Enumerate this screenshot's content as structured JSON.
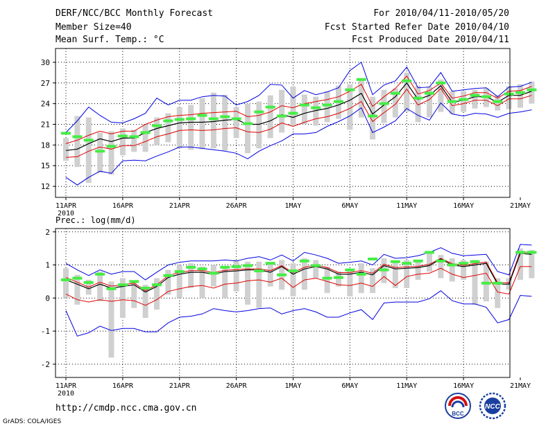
{
  "header": {
    "title": "DERF/NCC/BCC Monthly Forecast",
    "member_size": "Member Size=40",
    "variable": "Mean Surf. Temp.: °C",
    "period": "For 2010/04/11-2010/05/20",
    "started": "Fcst Started Refer Date 2010/04/10",
    "produced": "Fcst Produced Date 2010/04/11"
  },
  "footer": {
    "url": "http://cmdp.ncc.cma.gov.cn",
    "credit": "GrADS: COLA/IGES"
  },
  "logos": {
    "bcc_label": "BCC",
    "ncc_label": "NCC"
  },
  "colors": {
    "bar": "#d0d0d0",
    "green": "#44ee44",
    "blue": "#0000e0",
    "red": "#e00000",
    "black": "#000000",
    "grid": "#000000"
  },
  "chart_data": [
    {
      "type": "line",
      "title": "Mean Surf. Temp.: °C",
      "ylim": [
        10.4,
        32
      ],
      "yticks": [
        12,
        15,
        18,
        21,
        24,
        27,
        30
      ],
      "xticks": [
        {
          "day": 0,
          "label": "11APR"
        },
        {
          "day": 5,
          "label": "16APR"
        },
        {
          "day": 10,
          "label": "21APR"
        },
        {
          "day": 15,
          "label": "26APR"
        },
        {
          "day": 20,
          "label": "1MAY"
        },
        {
          "day": 25,
          "label": "6MAY"
        },
        {
          "day": 30,
          "label": "11MAY"
        },
        {
          "day": 35,
          "label": "16MAY"
        },
        {
          "day": 40,
          "label": "21MAY"
        }
      ],
      "xsublabel": "2010",
      "mean": [
        17.2,
        17.4,
        18.2,
        18.9,
        18.5,
        19.0,
        19.0,
        19.8,
        20.4,
        20.8,
        21.2,
        21.3,
        21.3,
        21.4,
        21.6,
        21.7,
        21.0,
        21.0,
        21.5,
        22.4,
        22.0,
        22.6,
        23.0,
        23.3,
        23.8,
        24.5,
        25.5,
        22.5,
        23.8,
        25.0,
        27.0,
        24.6,
        25.2,
        26.6,
        24.2,
        24.5,
        25.0,
        25.0,
        24.2,
        25.2,
        25.2,
        25.8
      ],
      "upper": [
        18.2,
        18.7,
        19.4,
        20.0,
        19.6,
        20.0,
        20.0,
        21.0,
        21.6,
        22.1,
        22.3,
        22.4,
        22.6,
        22.7,
        22.8,
        22.9,
        22.1,
        22.3,
        22.8,
        23.7,
        23.4,
        24.0,
        24.3,
        24.6,
        25.0,
        25.8,
        26.8,
        23.6,
        25.0,
        26.2,
        28.0,
        25.4,
        25.9,
        27.0,
        24.8,
        25.1,
        25.6,
        25.6,
        24.8,
        25.8,
        25.9,
        26.5
      ],
      "lower": [
        16.2,
        16.3,
        17.1,
        17.7,
        17.4,
        17.9,
        17.9,
        18.5,
        19.2,
        19.6,
        20.1,
        20.2,
        20.1,
        20.2,
        20.4,
        20.5,
        19.9,
        19.8,
        20.3,
        21.2,
        20.7,
        21.3,
        21.8,
        22.1,
        22.6,
        23.3,
        24.3,
        21.4,
        22.7,
        23.9,
        26.1,
        23.8,
        24.6,
        26.2,
        23.7,
        24.0,
        24.5,
        24.5,
        23.7,
        24.7,
        24.7,
        25.2
      ],
      "max": [
        19.8,
        21.5,
        23.5,
        22.3,
        21.3,
        21.2,
        21.8,
        22.6,
        24.8,
        23.8,
        24.5,
        24.5,
        25.0,
        25.2,
        25.1,
        23.8,
        24.3,
        25.2,
        26.8,
        26.7,
        24.8,
        25.9,
        25.3,
        25.7,
        26.3,
        28.8,
        30.0,
        25.3,
        26.7,
        27.3,
        29.3,
        26.3,
        26.4,
        28.5,
        25.8,
        26.0,
        26.2,
        26.3,
        25.0,
        26.4,
        26.5,
        27.1
      ],
      "min": [
        13.3,
        12.2,
        13.3,
        14.2,
        13.9,
        15.7,
        15.8,
        15.7,
        16.4,
        17.0,
        17.7,
        17.7,
        17.5,
        17.3,
        17.1,
        16.8,
        16.0,
        17.1,
        17.9,
        18.6,
        19.6,
        19.6,
        19.8,
        20.7,
        21.4,
        22.2,
        23.4,
        19.8,
        20.6,
        21.5,
        23.3,
        22.3,
        21.6,
        24.1,
        22.5,
        22.2,
        22.6,
        22.5,
        22.0,
        22.6,
        22.8,
        23.1
      ],
      "boxes": [
        [
          15.7,
          19.0
        ],
        [
          14.8,
          22.2
        ],
        [
          12.5,
          22.0
        ],
        [
          14.0,
          19.8
        ],
        [
          13.7,
          20.0
        ],
        [
          16.5,
          20.4
        ],
        [
          17.0,
          20.2
        ],
        [
          17.0,
          21.0
        ],
        [
          18.0,
          22.0
        ],
        [
          18.4,
          22.6
        ],
        [
          17.5,
          23.5
        ],
        [
          17.3,
          23.8
        ],
        [
          17.4,
          24.8
        ],
        [
          17.5,
          25.6
        ],
        [
          17.2,
          25.3
        ],
        [
          19.0,
          23.5
        ],
        [
          16.8,
          24.0
        ],
        [
          17.5,
          24.3
        ],
        [
          19.0,
          25.2
        ],
        [
          19.8,
          26.0
        ],
        [
          20.8,
          26.5
        ],
        [
          21.0,
          25.3
        ],
        [
          20.8,
          25.0
        ],
        [
          21.3,
          25.8
        ],
        [
          21.8,
          26.6
        ],
        [
          20.2,
          26.8
        ],
        [
          22.0,
          27.5
        ],
        [
          18.8,
          25.0
        ],
        [
          21.2,
          26.0
        ],
        [
          22.0,
          26.2
        ],
        [
          22.8,
          28.5
        ],
        [
          21.3,
          26.6
        ],
        [
          22.0,
          26.5
        ],
        [
          22.8,
          27.5
        ],
        [
          22.5,
          25.8
        ],
        [
          22.8,
          25.8
        ],
        [
          23.3,
          26.0
        ],
        [
          23.5,
          26.2
        ],
        [
          23.0,
          25.2
        ],
        [
          23.2,
          26.5
        ],
        [
          23.4,
          26.8
        ],
        [
          24.0,
          27.2
        ]
      ],
      "obs": [
        19.7,
        null,
        18.7,
        17.1,
        17.8,
        19.3,
        19.2,
        19.8,
        null,
        21.5,
        21.7,
        21.8,
        22.3,
        21.8,
        22.1,
        21.8,
        21.1,
        22.8,
        23.5,
        22.2,
        22.6,
        23.8,
        23.4,
        23.8,
        24.3,
        26.0,
        27.5,
        22.2,
        24.0,
        25.5,
        27.3,
        24.8,
        25.5,
        27.0,
        24.3,
        24.6,
        25.2,
        25.0,
        24.3,
        25.4,
        25.6,
        26.0
      ],
      "greens_only": [
        1,
        8
      ],
      "green_alt": [
        19.2,
        20.8
      ]
    },
    {
      "type": "line",
      "title": "Prec.: log(mm/d)",
      "ylim": [
        -2.4,
        2.1
      ],
      "yticks": [
        -2,
        -1,
        0,
        1,
        2
      ],
      "xticks": [
        {
          "day": 0,
          "label": "11APR"
        },
        {
          "day": 5,
          "label": "16APR"
        },
        {
          "day": 10,
          "label": "21APR"
        },
        {
          "day": 15,
          "label": "26APR"
        },
        {
          "day": 20,
          "label": "1MAY"
        },
        {
          "day": 25,
          "label": "6MAY"
        },
        {
          "day": 30,
          "label": "11MAY"
        },
        {
          "day": 35,
          "label": "16MAY"
        },
        {
          "day": 40,
          "label": "21MAY"
        }
      ],
      "xsublabel": "2010",
      "mean": [
        0.55,
        0.42,
        0.28,
        0.42,
        0.3,
        0.35,
        0.4,
        0.18,
        0.35,
        0.62,
        0.72,
        0.78,
        0.78,
        0.72,
        0.8,
        0.82,
        0.85,
        0.85,
        0.78,
        0.95,
        0.72,
        0.88,
        0.95,
        0.88,
        0.72,
        0.72,
        0.78,
        0.7,
        0.98,
        0.88,
        0.9,
        0.92,
        0.98,
        1.18,
        1.0,
        0.95,
        1.0,
        1.05,
        0.42,
        0.42,
        1.35,
        1.32
      ],
      "upper": [
        0.62,
        0.48,
        0.33,
        0.48,
        0.36,
        0.4,
        0.45,
        0.22,
        0.4,
        0.68,
        0.77,
        0.83,
        0.83,
        0.77,
        0.84,
        0.86,
        0.88,
        0.88,
        0.83,
        0.98,
        0.77,
        0.93,
        1.0,
        0.92,
        0.77,
        0.77,
        0.83,
        0.75,
        1.02,
        0.92,
        0.94,
        0.96,
        1.02,
        1.2,
        1.04,
        0.99,
        1.04,
        1.09,
        0.46,
        0.46,
        1.4,
        1.37
      ],
      "lower": [
        0.47,
        0.35,
        0.22,
        0.35,
        0.24,
        0.28,
        0.34,
        0.12,
        0.28,
        0.55,
        0.66,
        0.72,
        0.72,
        0.66,
        0.74,
        0.76,
        0.79,
        0.79,
        0.72,
        0.89,
        0.66,
        0.82,
        0.88,
        0.82,
        0.66,
        0.66,
        0.72,
        0.64,
        0.92,
        0.82,
        0.84,
        0.86,
        0.92,
        1.12,
        0.94,
        0.89,
        0.94,
        0.99,
        0.36,
        0.36,
        1.29,
        1.27
      ],
      "max": [
        1.05,
        0.85,
        0.68,
        0.85,
        0.72,
        0.8,
        0.8,
        0.55,
        0.78,
        1.0,
        1.08,
        1.12,
        1.12,
        1.12,
        1.15,
        1.12,
        1.2,
        1.25,
        1.15,
        1.3,
        1.12,
        1.38,
        1.3,
        1.2,
        1.05,
        1.08,
        1.12,
        1.0,
        1.32,
        1.2,
        1.22,
        1.28,
        1.38,
        1.52,
        1.35,
        1.28,
        1.3,
        1.32,
        0.8,
        0.7,
        1.62,
        1.6
      ],
      "min": [
        -0.38,
        -1.15,
        -1.05,
        -0.85,
        -0.98,
        -0.92,
        -0.92,
        -1.02,
        -1.02,
        -0.75,
        -0.58,
        -0.55,
        -0.48,
        -0.32,
        -0.38,
        -0.42,
        -0.38,
        -0.32,
        -0.3,
        -0.48,
        -0.38,
        -0.32,
        -0.42,
        -0.58,
        -0.58,
        -0.45,
        -0.35,
        -0.65,
        -0.15,
        -0.12,
        -0.12,
        -0.12,
        -0.02,
        0.22,
        -0.08,
        -0.18,
        -0.18,
        -0.28,
        -0.75,
        -0.65,
        0.08,
        0.05
      ],
      "red": [
        0.12,
        -0.05,
        -0.12,
        -0.05,
        -0.1,
        -0.05,
        -0.08,
        -0.22,
        -0.05,
        0.2,
        0.28,
        0.35,
        0.38,
        0.3,
        0.42,
        0.45,
        0.52,
        0.55,
        0.48,
        0.6,
        0.32,
        0.55,
        0.6,
        0.5,
        0.4,
        0.38,
        0.45,
        0.35,
        0.65,
        0.38,
        0.65,
        0.72,
        0.75,
        0.9,
        0.72,
        0.62,
        0.68,
        0.75,
        0.18,
        0.12,
        0.95,
        0.95
      ],
      "boxes": [
        [
          0.0,
          0.9
        ],
        [
          -0.2,
          0.7
        ],
        [
          0.1,
          0.55
        ],
        [
          -0.1,
          0.8
        ],
        [
          -1.8,
          0.5
        ],
        [
          -0.6,
          0.6
        ],
        [
          -0.3,
          0.5
        ],
        [
          -0.6,
          0.4
        ],
        [
          -0.35,
          0.6
        ],
        [
          0.1,
          0.85
        ],
        [
          0.0,
          1.0
        ],
        [
          0.3,
          1.05
        ],
        [
          0.0,
          0.95
        ],
        [
          0.35,
          1.0
        ],
        [
          0.0,
          0.95
        ],
        [
          0.2,
          1.15
        ],
        [
          -0.2,
          1.1
        ],
        [
          -0.3,
          1.1
        ],
        [
          0.35,
          1.05
        ],
        [
          0.25,
          1.15
        ],
        [
          0.05,
          1.05
        ],
        [
          0.25,
          1.2
        ],
        [
          0.6,
          1.15
        ],
        [
          0.15,
          0.95
        ],
        [
          0.35,
          0.8
        ],
        [
          0.05,
          0.85
        ],
        [
          0.15,
          1.05
        ],
        [
          0.15,
          0.9
        ],
        [
          0.45,
          1.2
        ],
        [
          0.3,
          1.1
        ],
        [
          0.3,
          1.15
        ],
        [
          0.55,
          1.15
        ],
        [
          0.8,
          1.4
        ],
        [
          0.6,
          1.3
        ],
        [
          0.5,
          1.2
        ],
        [
          0.55,
          1.15
        ],
        [
          -0.2,
          1.15
        ],
        [
          -0.1,
          1.1
        ],
        [
          -0.3,
          0.6
        ],
        [
          0.25,
          0.6
        ],
        [
          0.55,
          1.5
        ],
        [
          0.6,
          1.45
        ]
      ],
      "obs": [
        0.55,
        0.6,
        0.47,
        0.72,
        0.28,
        0.4,
        0.5,
        0.3,
        0.4,
        0.68,
        0.8,
        0.93,
        0.88,
        0.75,
        0.93,
        0.95,
        0.98,
        0.82,
        1.05,
        0.7,
        0.82,
        1.12,
        0.98,
        0.6,
        0.62,
        0.85,
        0.72,
        1.18,
        0.85,
        1.1,
        1.05,
        1.12,
        1.38,
        1.12,
        1.0,
        1.05,
        1.1,
        0.45,
        0.45,
        null,
        1.38,
        1.38
      ]
    }
  ]
}
